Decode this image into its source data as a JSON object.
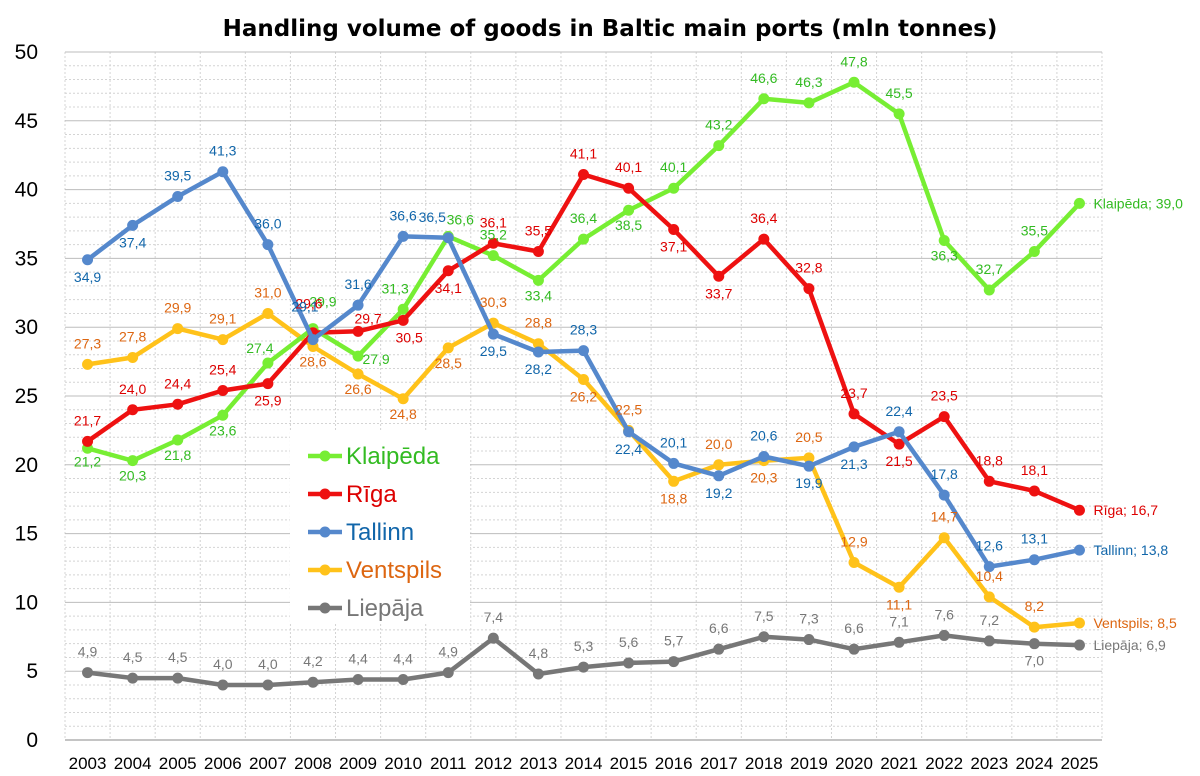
{
  "chart_data": {
    "type": "line",
    "title": "Handling volume of goods in Baltic main ports (mln tonnes)",
    "xlabel": "",
    "ylabel": "",
    "ylim": [
      0,
      50
    ],
    "yticks": [
      "0",
      "5",
      "10",
      "15",
      "20",
      "25",
      "30",
      "35",
      "40",
      "45",
      "50"
    ],
    "grid": true,
    "legend_position": "center-left",
    "categories": [
      "2003",
      "2004",
      "2005",
      "2006",
      "2007",
      "2008",
      "2009",
      "2010",
      "2011",
      "2012",
      "2013",
      "2014",
      "2015",
      "2016",
      "2017",
      "2018",
      "2019",
      "2020",
      "2021",
      "2022",
      "2023",
      "2024",
      "2025"
    ],
    "series": [
      {
        "name": "Klaipēda",
        "color": "#77ee33",
        "label_color": "#33bb22",
        "values": [
          21.2,
          20.3,
          21.8,
          23.6,
          27.4,
          29.9,
          27.9,
          31.3,
          36.6,
          35.2,
          33.4,
          36.4,
          38.5,
          40.1,
          43.2,
          46.6,
          46.3,
          47.8,
          45.5,
          36.3,
          32.7,
          35.5,
          39.0
        ],
        "labels": [
          "21,2",
          "20,3",
          "21,8",
          "23,6",
          "27,4",
          "29,9",
          "27,9",
          "31,3",
          "36,6",
          "35,2",
          "33,4",
          "36,4",
          "38,5",
          "40,1",
          "43,2",
          "46,6",
          "46,3",
          "47,8",
          "45,5",
          "36,3",
          "32,7",
          "35,5",
          ""
        ],
        "end_label": "Klaipēda; 39,0"
      },
      {
        "name": "Rīga",
        "color": "#ee1111",
        "label_color": "#dd0000",
        "values": [
          21.7,
          24.0,
          24.4,
          25.4,
          25.9,
          29.6,
          29.7,
          30.5,
          34.1,
          36.1,
          35.5,
          41.1,
          40.1,
          37.1,
          33.7,
          36.4,
          32.8,
          23.7,
          21.5,
          23.5,
          18.8,
          18.1,
          16.7
        ],
        "labels": [
          "21,7",
          "24,0",
          "24,4",
          "25,4",
          "25,9",
          "29,6",
          "29,7",
          "30,5",
          "34,1",
          "36,1",
          "35,5",
          "41,1",
          "40,1",
          "37,1",
          "33,7",
          "36,4",
          "32,8",
          "23,7",
          "21,5",
          "23,5",
          "18,8",
          "18,1",
          ""
        ],
        "end_label": "Rīga; 16,7"
      },
      {
        "name": "Tallinn",
        "color": "#5588cc",
        "label_color": "#1166aa",
        "values": [
          34.9,
          37.4,
          39.5,
          41.3,
          36.0,
          29.1,
          31.6,
          36.6,
          36.5,
          29.5,
          28.2,
          28.3,
          22.4,
          20.1,
          19.2,
          20.6,
          19.9,
          21.3,
          22.4,
          17.8,
          12.6,
          13.1,
          13.8
        ],
        "labels": [
          "34,9",
          "37,4",
          "39,5",
          "41,3",
          "36,0",
          "29,1",
          "31,6",
          "36,6",
          "36,5",
          "29,5",
          "28,2",
          "28,3",
          "22,4",
          "20,1",
          "19,2",
          "20,6",
          "19,9",
          "21,3",
          "22,4",
          "17,8",
          "12,6",
          "13,1",
          ""
        ],
        "end_label": "Tallinn; 13,8"
      },
      {
        "name": "Ventspils",
        "color": "#ffc21a",
        "label_color": "#dd6611",
        "values": [
          27.3,
          27.8,
          29.9,
          29.1,
          31.0,
          28.6,
          26.6,
          24.8,
          28.5,
          30.3,
          28.8,
          26.2,
          22.5,
          18.8,
          20.0,
          20.3,
          20.5,
          12.9,
          11.1,
          14.7,
          10.4,
          8.2,
          8.5
        ],
        "labels": [
          "27,3",
          "27,8",
          "29,9",
          "29,1",
          "31,0",
          "28,6",
          "26,6",
          "24,8",
          "28,5",
          "30,3",
          "28,8",
          "26,2",
          "22,5",
          "18,8",
          "20,0",
          "20,3",
          "20,5",
          "12,9",
          "11,1",
          "14,7",
          "10,4",
          "8,2",
          ""
        ],
        "end_label": "Ventspils; 8,5"
      },
      {
        "name": "Liepāja",
        "color": "#777777",
        "label_color": "#777777",
        "values": [
          4.9,
          4.5,
          4.5,
          4.0,
          4.0,
          4.2,
          4.4,
          4.4,
          4.9,
          7.4,
          4.8,
          5.3,
          5.6,
          5.7,
          6.6,
          7.5,
          7.3,
          6.6,
          7.1,
          7.6,
          7.2,
          7.0,
          6.9
        ],
        "labels": [
          "4,9",
          "4,5",
          "4,5",
          "4,0",
          "4,0",
          "4,2",
          "4,4",
          "4,4",
          "4,9",
          "7,4",
          "4,8",
          "5,3",
          "5,6",
          "5,7",
          "6,6",
          "7,5",
          "7,3",
          "6,6",
          "7,1",
          "7,6",
          "7,2",
          "7,0",
          ""
        ],
        "end_label": "Liepāja; 6,9"
      }
    ]
  }
}
